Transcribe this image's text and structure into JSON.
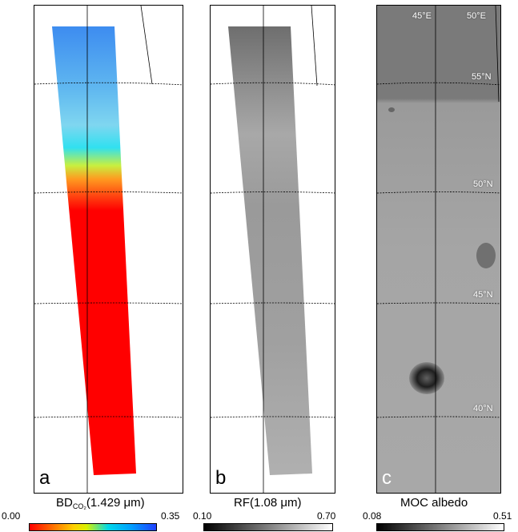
{
  "panels": [
    {
      "letter": "a"
    },
    {
      "letter": "b"
    },
    {
      "letter": "c"
    }
  ],
  "map_labels": {
    "lon_45": "45°E",
    "lon_50": "50°E",
    "lat_55": "55°N",
    "lat_50": "50°N",
    "lat_45": "45°N",
    "lat_40": "40°N"
  },
  "colorbars": [
    {
      "title_prefix": "BD",
      "title_sub": "CO₂",
      "title_suffix": "(1.429 μm)",
      "min": "0.00",
      "max": "0.35",
      "scale": "red-orange-yellow-cyan-blue"
    },
    {
      "title": "RF(1.08 μm)",
      "min": "0.10",
      "max": "0.70",
      "scale": "black-white"
    },
    {
      "title": "MOC albedo",
      "min": "0.08",
      "max": "0.51",
      "scale": "black-white"
    }
  ],
  "colors": {
    "red": "#ff0000",
    "orange": "#ff8000",
    "yellow": "#f0f000",
    "cyan": "#00c8f0",
    "blue": "#2050ff"
  }
}
